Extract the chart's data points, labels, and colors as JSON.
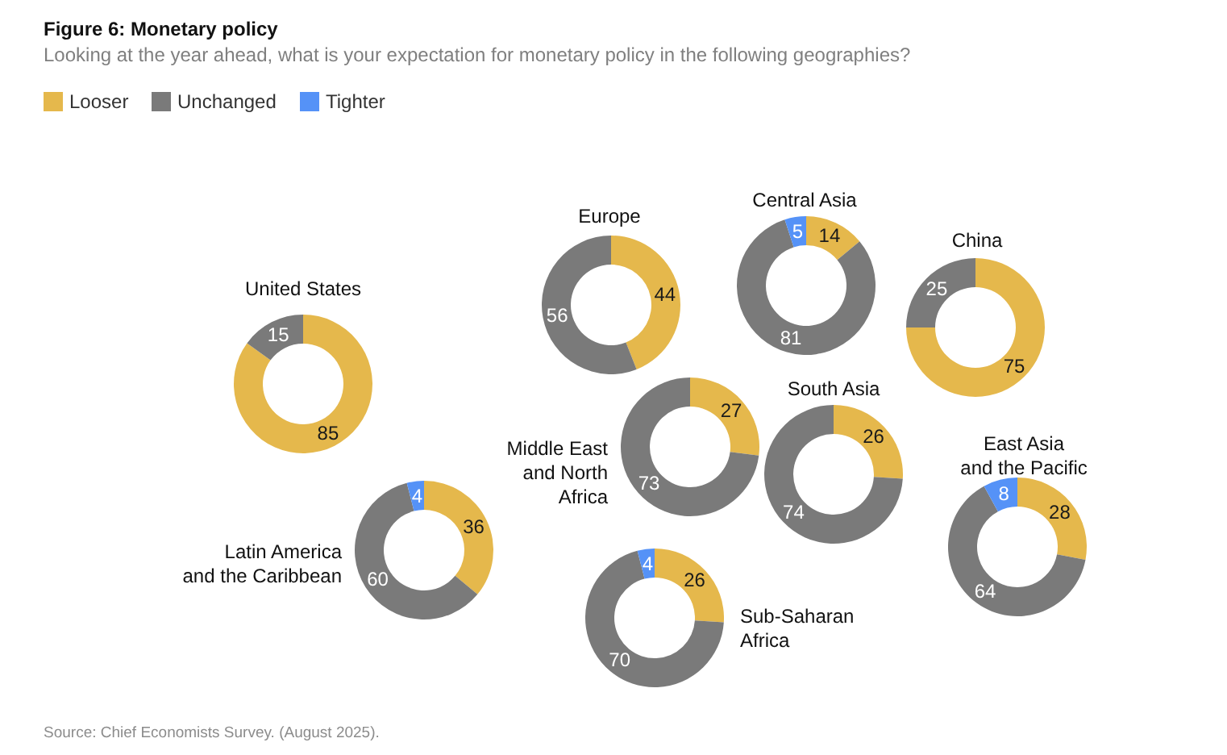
{
  "chart_data": [
    {
      "type": "other",
      "title": "Figure 6: Monetary policy",
      "subtitle": "Looking at the year ahead, what is your expectation for monetary policy in the following geographies?",
      "annotations": [
        "Source: Chief Economists Survey. (August 2025)."
      ]
    },
    {
      "type": "donut",
      "title": "Central Asia",
      "categories": [
        "Looser",
        "Unchanged",
        "Tighter"
      ],
      "values": [
        14,
        81,
        5
      ],
      "colors": [
        "#e5b84c",
        "#7a7a7a",
        "#5592f7"
      ],
      "data_labels": true,
      "legend": "top left"
    },
    {
      "type": "donut",
      "title": "Europe",
      "categories": [
        null,
        null
      ],
      "values": [
        44,
        56
      ],
      "colors": [
        "#e5b84c",
        "#7a7a7a"
      ],
      "data_labels": true
    },
    {
      "type": "donut",
      "title": "China",
      "categories": [
        null,
        null
      ],
      "values": [
        75,
        25
      ],
      "colors": [
        "#e5b84c",
        "#7a7a7a"
      ],
      "data_labels": true
    },
    {
      "type": "donut",
      "title": "United States",
      "categories": [
        null,
        null
      ],
      "values": [
        85,
        15
      ],
      "colors": [
        "#e5b84c",
        "#7a7a7a"
      ],
      "data_labels": true
    },
    {
      "type": "donut",
      "title": "South Asia",
      "categories": [
        null,
        null
      ],
      "values": [
        26,
        74
      ],
      "colors": [
        "#e5b84c",
        "#7a7a7a"
      ],
      "data_labels": true
    },
    {
      "type": "donut",
      "title": "Middle East and North Africa",
      "categories": [
        null,
        null
      ],
      "values": [
        27,
        73
      ],
      "colors": [
        "#e5b84c",
        "#7a7a7a"
      ],
      "data_labels": true
    },
    {
      "type": "donut",
      "title": "East Asia and the Pacific",
      "categories": [
        null,
        null,
        null
      ],
      "values": [
        28,
        64,
        8
      ],
      "colors": [
        "#e5b84c",
        "#7a7a7a",
        "#5592f7"
      ],
      "data_labels": true
    },
    {
      "type": "donut",
      "title": "Latin America and the Caribbean",
      "categories": [
        null,
        null,
        null
      ],
      "values": [
        36,
        60,
        4
      ],
      "colors": [
        "#e5b84c",
        "#7a7a7a",
        "#5592f7"
      ],
      "data_labels": true
    },
    {
      "type": "donut",
      "title": "Sub-Saharan Africa",
      "categories": [
        null,
        null,
        null
      ],
      "values": [
        26,
        70,
        4
      ],
      "colors": [
        "#e5b84c",
        "#7a7a7a",
        "#5592f7"
      ],
      "data_labels": true
    }
  ]
}
